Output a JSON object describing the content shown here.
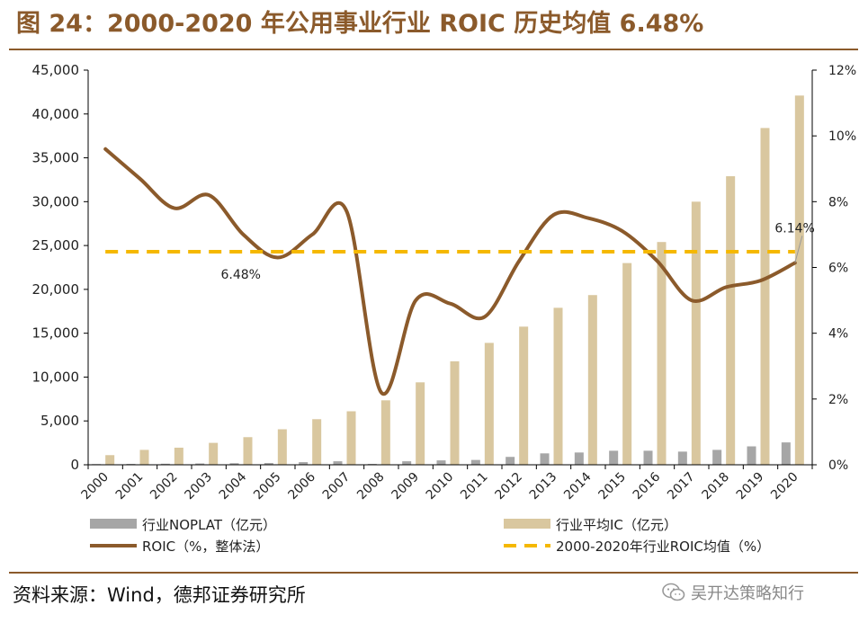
{
  "title": "图 24：2000-2020 年公用事业行业 ROIC 历史均值 6.48%",
  "source": "资料来源：Wind，德邦证券研究所",
  "watermark": "吴开达策略知行",
  "chart_data": {
    "type": "bar+line",
    "title": "图 24：2000-2020 年公用事业行业 ROIC 历史均值 6.48%",
    "categories": [
      "2000",
      "2001",
      "2002",
      "2003",
      "2004",
      "2005",
      "2006",
      "2007",
      "2008",
      "2009",
      "2010",
      "2011",
      "2012",
      "2013",
      "2014",
      "2015",
      "2016",
      "2017",
      "2018",
      "2019",
      "2020"
    ],
    "left_axis": {
      "ylim": [
        0,
        45000
      ],
      "ticks": [
        0,
        5000,
        10000,
        15000,
        20000,
        25000,
        30000,
        35000,
        40000,
        45000
      ],
      "tick_labels": [
        "0",
        "5,000",
        "10,000",
        "15,000",
        "20,000",
        "25,000",
        "30,000",
        "35,000",
        "40,000",
        "45,000"
      ]
    },
    "right_axis": {
      "ylim": [
        0,
        12
      ],
      "ticks": [
        0,
        2,
        4,
        6,
        8,
        10,
        12
      ],
      "tick_labels": [
        "0%",
        "2%",
        "4%",
        "6%",
        "8%",
        "10%",
        "12%"
      ]
    },
    "series": [
      {
        "name": "行业NOPLAT（亿元）",
        "type": "bar",
        "axis": "left",
        "color": "#a6a6a6",
        "values": [
          80,
          100,
          120,
          150,
          180,
          200,
          300,
          400,
          100,
          400,
          500,
          550,
          900,
          1300,
          1400,
          1600,
          1600,
          1500,
          1700,
          2100,
          2550
        ]
      },
      {
        "name": "行业平均IC（亿元）",
        "type": "bar",
        "axis": "left",
        "color": "#d9c79f",
        "values": [
          1100,
          1700,
          1950,
          2500,
          3150,
          4050,
          5200,
          6100,
          7350,
          9400,
          11800,
          13900,
          15750,
          17900,
          19350,
          23000,
          25400,
          30000,
          32900,
          38400,
          42100
        ]
      },
      {
        "name": "ROIC（%，整体法）",
        "type": "line",
        "axis": "right",
        "color": "#8b5a2b",
        "values": [
          9.6,
          8.7,
          7.8,
          8.2,
          7.0,
          6.3,
          7.0,
          7.7,
          2.2,
          5.0,
          4.9,
          4.5,
          6.2,
          7.6,
          7.5,
          7.1,
          6.2,
          5.0,
          5.4,
          5.6,
          6.14
        ]
      },
      {
        "name": "2000-2020年行业ROIC均值（%）",
        "type": "hline",
        "axis": "right",
        "color": "#f5b800",
        "value": 6.48
      }
    ],
    "annotations": [
      {
        "text": "6.48%",
        "year": "2004",
        "value": 6.48
      },
      {
        "text": "6.14%",
        "year": "2020",
        "value": 6.14
      }
    ],
    "legend_position": "bottom"
  }
}
